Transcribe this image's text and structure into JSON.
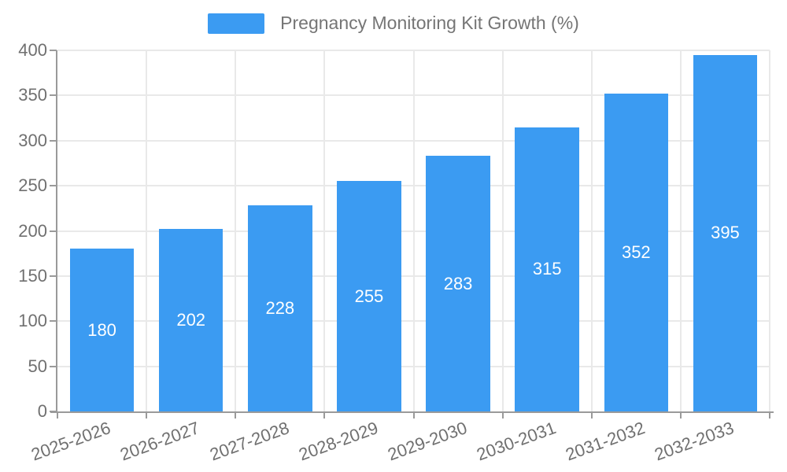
{
  "chart_data": {
    "type": "bar",
    "title": "Pregnancy Monitoring Kit Growth (%)",
    "legend": {
      "label": "Pregnancy Monitoring Kit Growth (%)",
      "position": "top-center"
    },
    "categories": [
      "2025-2026",
      "2026-2027",
      "2027-2028",
      "2028-2029",
      "2029-2030",
      "2030-2031",
      "2031-2032",
      "2032-2033"
    ],
    "values": [
      180,
      202,
      228,
      255,
      283,
      315,
      352,
      395
    ],
    "xlabel": "",
    "ylabel": "",
    "ylim": [
      0,
      400
    ],
    "yticks": [
      0,
      50,
      100,
      150,
      200,
      250,
      300,
      350,
      400
    ],
    "grid": true,
    "value_labels_inside_bars": true,
    "x_label_rotation_deg": -20
  },
  "colors": {
    "bar": "#3b9bf2",
    "axis": "#9a9a9a",
    "grid": "#e9e9e9",
    "tick_text": "#707070",
    "legend_text": "#757575",
    "value_text": "#ffffff",
    "background": "#ffffff"
  }
}
